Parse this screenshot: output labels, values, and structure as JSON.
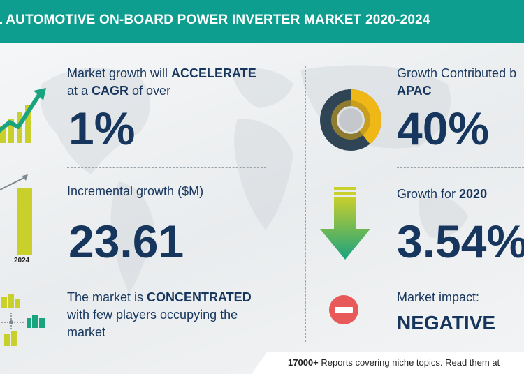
{
  "header": {
    "title": "L AUTOMOTIVE ON-BOARD POWER INVERTER MARKET 2020-2024"
  },
  "left": {
    "cagr": {
      "line1_pre": "Market growth will ",
      "line1_strong": "ACCELERATE",
      "line2_pre": "at a ",
      "line2_strong": "CAGR",
      "line2_post": " of over",
      "value": "1%"
    },
    "incremental": {
      "label": "Incremental growth ($M)",
      "value": "23.61",
      "year_label": "2024"
    },
    "concentration": {
      "line1_pre": "The market is ",
      "line1_strong": "CONCENTRATED",
      "line2": "with few players occupying the",
      "line3": "market"
    }
  },
  "right": {
    "apac": {
      "line1": "Growth Contributed b",
      "line2": "APAC",
      "value": "40%"
    },
    "growth2020": {
      "label_pre": "Growth for ",
      "label_strong": "2020",
      "value": "3.54%"
    },
    "impact": {
      "label": "Market impact:",
      "value": "NEGATIVE"
    }
  },
  "footer": {
    "count": "17000+",
    "text": " Reports covering niche topics. Read them at"
  },
  "colors": {
    "header": "#0e9e8f",
    "navy": "#17365d",
    "yellow": "#c9cf2b",
    "green": "#1aa37f",
    "red": "#e85a5a",
    "donut_dark": "#2f4556",
    "donut_yellow": "#f0b816"
  }
}
